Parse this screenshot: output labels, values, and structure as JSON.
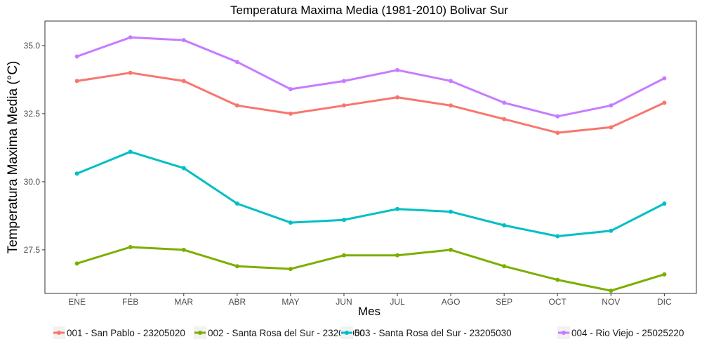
{
  "chart_data": {
    "type": "line",
    "title": "Temperatura Maxima Media (1981-2010)  Bolivar Sur",
    "xlabel": "Mes",
    "ylabel": "Temperatura Maxima Media  (°C)",
    "categories": [
      "ENE",
      "FEB",
      "MAR",
      "ABR",
      "MAY",
      "JUN",
      "JUL",
      "AGO",
      "SEP",
      "OCT",
      "NOV",
      "DIC"
    ],
    "ylim": [
      25.9,
      35.9
    ],
    "yticks": [
      27.5,
      30.0,
      32.5,
      35.0
    ],
    "ytick_labels": [
      "27.5",
      "30.0",
      "32.5",
      "35.0"
    ],
    "grid": false,
    "legend_position": "bottom",
    "series": [
      {
        "name": "001 - San Pablo - 23205020",
        "color": "#F8766D",
        "values": [
          33.7,
          34.0,
          33.7,
          32.8,
          32.5,
          32.8,
          33.1,
          32.8,
          32.3,
          31.8,
          32.0,
          32.9
        ]
      },
      {
        "name": "002 - Santa Rosa del Sur - 23205050",
        "color": "#7CAE00",
        "values": [
          27.0,
          27.6,
          27.5,
          26.9,
          26.8,
          27.3,
          27.3,
          27.5,
          26.9,
          26.4,
          26.0,
          26.6
        ]
      },
      {
        "name": "003 - Santa Rosa del Sur - 23205030",
        "color": "#00BFC4",
        "values": [
          30.3,
          31.1,
          30.5,
          29.2,
          28.5,
          28.6,
          29.0,
          28.9,
          28.4,
          28.0,
          28.2,
          29.2
        ]
      },
      {
        "name": "004 - Rio Viejo - 25025220",
        "color": "#C77CFF",
        "values": [
          34.6,
          35.3,
          35.2,
          34.4,
          33.4,
          33.7,
          34.1,
          33.7,
          32.9,
          32.4,
          32.8,
          33.8
        ]
      }
    ]
  }
}
